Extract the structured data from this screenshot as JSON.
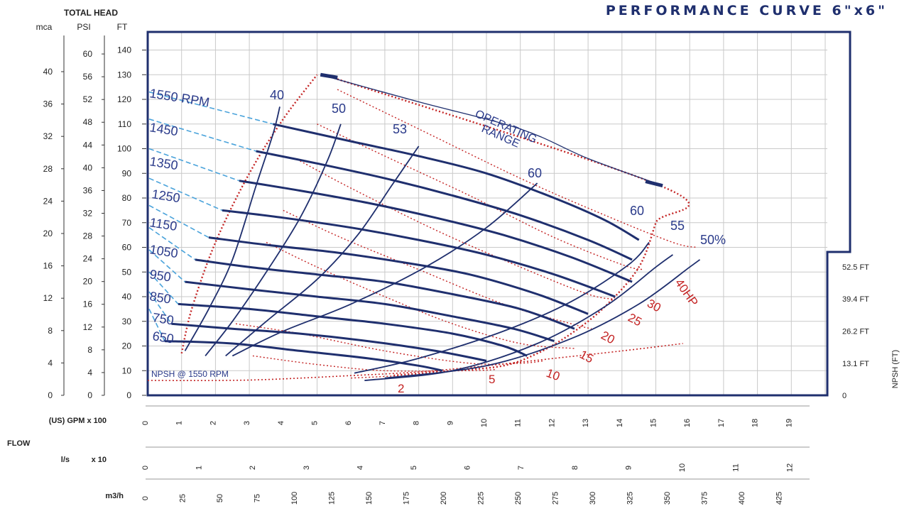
{
  "chart_data": {
    "type": "line",
    "title": "PERFORMANCE CURVE 6\"x6\"",
    "head_axes": {
      "title": "TOTAL HEAD",
      "mca": {
        "label": "mca",
        "ticks": [
          0,
          4,
          8,
          12,
          16,
          20,
          24,
          28,
          32,
          36,
          40
        ]
      },
      "psi": {
        "label": "PSI",
        "ticks": [
          0,
          4,
          8,
          12,
          16,
          20,
          24,
          28,
          32,
          36,
          40,
          44,
          48,
          52,
          56,
          60
        ]
      },
      "ft": {
        "label": "FT",
        "ticks": [
          0,
          10,
          20,
          30,
          40,
          50,
          60,
          70,
          80,
          90,
          100,
          110,
          120,
          130,
          140
        ]
      }
    },
    "npsh_axis": {
      "label": "NPSH (FT)",
      "ticks": [
        {
          "label": "0",
          "value": 0
        },
        {
          "label": "13.1 FT",
          "value": 13.1
        },
        {
          "label": "26.2 FT",
          "value": 26.2
        },
        {
          "label": "39.4 FT",
          "value": 39.4
        },
        {
          "label": "52.5 FT",
          "value": 52.5
        }
      ]
    },
    "flow_axes": {
      "flow_label": "FLOW",
      "gpm": {
        "label": "(US) GPM x 100",
        "ticks": [
          "0",
          "1",
          "2",
          "3",
          "4",
          "5",
          "6",
          "7",
          "8",
          "9",
          "10",
          "11",
          "12",
          "13",
          "14",
          "15",
          "16",
          "17",
          "18",
          "19"
        ]
      },
      "ls": {
        "label": "l/s",
        "multiplier": "x 10",
        "ticks": [
          "0",
          "1",
          "2",
          "3",
          "4",
          "5",
          "6",
          "7",
          "8",
          "9",
          "10",
          "11",
          "12"
        ]
      },
      "m3h": {
        "label": "m3/h",
        "ticks": [
          "0",
          "25",
          "50",
          "75",
          "100",
          "125",
          "150",
          "175",
          "200",
          "225",
          "250",
          "275",
          "300",
          "325",
          "350",
          "375",
          "400",
          "425"
        ]
      }
    },
    "xlim": [
      0,
      20
    ],
    "ylim": [
      0,
      145
    ],
    "speed_curves": [
      {
        "rpm": "1550 RPM",
        "points": [
          [
            3.7,
            110
          ],
          [
            6,
            103
          ],
          [
            8,
            97
          ],
          [
            10,
            90
          ],
          [
            12,
            80
          ],
          [
            13.5,
            71
          ],
          [
            14.5,
            63
          ]
        ]
      },
      {
        "rpm": "1450",
        "points": [
          [
            3.2,
            99
          ],
          [
            5,
            94
          ],
          [
            7,
            88
          ],
          [
            9,
            81
          ],
          [
            11,
            73
          ],
          [
            13,
            63
          ],
          [
            14.3,
            55
          ]
        ]
      },
      {
        "rpm": "1350",
        "points": [
          [
            2.7,
            87
          ],
          [
            4.5,
            83
          ],
          [
            6.5,
            78
          ],
          [
            8.5,
            72
          ],
          [
            10.5,
            65
          ],
          [
            12.5,
            56
          ],
          [
            14.3,
            46
          ]
        ]
      },
      {
        "rpm": "1250",
        "points": [
          [
            2.2,
            75
          ],
          [
            4,
            72
          ],
          [
            6,
            68
          ],
          [
            8,
            63
          ],
          [
            10,
            57
          ],
          [
            12,
            49
          ],
          [
            13.8,
            40
          ]
        ]
      },
      {
        "rpm": "1150",
        "points": [
          [
            1.8,
            64
          ],
          [
            3.5,
            61
          ],
          [
            5.5,
            58
          ],
          [
            7.5,
            54
          ],
          [
            9.5,
            49
          ],
          [
            11.5,
            41
          ],
          [
            13,
            33
          ]
        ]
      },
      {
        "rpm": "1050",
        "points": [
          [
            1.4,
            55
          ],
          [
            3,
            52
          ],
          [
            5,
            49
          ],
          [
            7,
            46
          ],
          [
            9,
            41
          ],
          [
            11,
            35
          ],
          [
            12.6,
            27
          ]
        ]
      },
      {
        "rpm": "950",
        "points": [
          [
            1.1,
            46
          ],
          [
            3,
            43
          ],
          [
            5,
            40
          ],
          [
            7,
            37
          ],
          [
            9,
            32
          ],
          [
            10.8,
            27
          ],
          [
            12,
            22
          ]
        ]
      },
      {
        "rpm": "850",
        "points": [
          [
            0.9,
            37
          ],
          [
            3,
            35
          ],
          [
            5,
            32
          ],
          [
            7,
            29
          ],
          [
            9,
            25
          ],
          [
            10.5,
            20
          ],
          [
            11.2,
            16
          ]
        ]
      },
      {
        "rpm": "750",
        "points": [
          [
            0.7,
            29
          ],
          [
            2.5,
            27
          ],
          [
            4.5,
            25
          ],
          [
            6.5,
            22
          ],
          [
            8.5,
            18
          ],
          [
            10,
            14
          ]
        ]
      },
      {
        "rpm": "650",
        "points": [
          [
            0.5,
            22
          ],
          [
            2.5,
            21
          ],
          [
            4.5,
            18
          ],
          [
            6.5,
            15
          ],
          [
            8,
            12
          ],
          [
            8.7,
            10
          ]
        ]
      }
    ],
    "efficiency_curves": [
      {
        "label": "40",
        "points": [
          [
            1.1,
            18
          ],
          [
            1.8,
            35
          ],
          [
            2.5,
            55
          ],
          [
            3.2,
            85
          ],
          [
            3.7,
            106
          ],
          [
            3.9,
            117
          ]
        ]
      },
      {
        "label": "50",
        "points": [
          [
            1.7,
            16
          ],
          [
            2.5,
            30
          ],
          [
            3.5,
            50
          ],
          [
            4.5,
            72
          ],
          [
            5.3,
            95
          ],
          [
            5.7,
            110
          ]
        ]
      },
      {
        "label": "53",
        "points": [
          [
            2.3,
            16
          ],
          [
            3.5,
            30
          ],
          [
            5,
            47
          ],
          [
            6.2,
            65
          ],
          [
            7.2,
            85
          ],
          [
            8,
            101
          ]
        ]
      },
      {
        "label": "60",
        "points": [
          [
            2.5,
            16
          ],
          [
            4,
            26
          ],
          [
            6,
            37
          ],
          [
            8.2,
            52
          ],
          [
            10,
            68
          ],
          [
            11.5,
            86
          ]
        ]
      },
      {
        "label": "60",
        "points": [
          [
            6.1,
            9
          ],
          [
            8,
            15
          ],
          [
            10.5,
            26
          ],
          [
            12.5,
            38
          ],
          [
            14.2,
            53
          ],
          [
            14.8,
            62
          ]
        ]
      },
      {
        "label": "55",
        "points": [
          [
            6.4,
            6
          ],
          [
            9,
            10
          ],
          [
            11.5,
            21
          ],
          [
            13.5,
            36
          ],
          [
            15,
            52
          ],
          [
            15.5,
            57
          ]
        ]
      },
      {
        "label": "50%",
        "points": [
          [
            7,
            7
          ],
          [
            10,
            12
          ],
          [
            12.5,
            23
          ],
          [
            14.5,
            37
          ],
          [
            16,
            52
          ],
          [
            16.3,
            55
          ]
        ]
      }
    ],
    "power_curves": [
      {
        "label": "2",
        "points": [
          [
            6,
            7
          ],
          [
            6.8,
            7.5
          ],
          [
            7.4,
            8
          ]
        ]
      },
      {
        "label": "5",
        "points": [
          [
            3.1,
            16
          ],
          [
            5,
            12.5
          ],
          [
            7,
            10
          ],
          [
            9.5,
            10
          ],
          [
            10.3,
            10.5
          ]
        ]
      },
      {
        "label": "10",
        "points": [
          [
            2.6,
            29
          ],
          [
            4.5,
            25
          ],
          [
            7,
            18
          ],
          [
            9.5,
            13
          ],
          [
            11,
            13
          ],
          [
            11.7,
            14
          ]
        ]
      },
      {
        "label": "15",
        "points": [
          [
            3.5,
            62
          ],
          [
            5,
            52
          ],
          [
            7,
            40
          ],
          [
            9,
            29
          ],
          [
            11,
            21
          ],
          [
            12.6,
            19
          ]
        ]
      },
      {
        "label": "20",
        "points": [
          [
            4,
            75
          ],
          [
            5.7,
            64
          ],
          [
            8,
            51
          ],
          [
            10.5,
            37
          ],
          [
            12.5,
            29
          ],
          [
            13.1,
            27
          ]
        ]
      },
      {
        "label": "25",
        "points": [
          [
            4.5,
            95
          ],
          [
            6,
            84
          ],
          [
            8.5,
            67
          ],
          [
            11,
            52
          ],
          [
            13,
            41
          ],
          [
            13.8,
            39
          ]
        ]
      },
      {
        "label": "30",
        "points": [
          [
            5,
            110
          ],
          [
            7,
            97
          ],
          [
            9.5,
            81
          ],
          [
            12,
            64
          ],
          [
            14,
            53
          ],
          [
            14.6,
            51
          ]
        ]
      },
      {
        "label": "40HP",
        "points": [
          [
            5.6,
            124
          ],
          [
            8,
            108
          ],
          [
            11,
            88
          ],
          [
            13.5,
            73
          ],
          [
            15.5,
            62
          ],
          [
            16.2,
            60
          ]
        ]
      }
    ],
    "power_labels": [
      "2",
      "5",
      "10",
      "15",
      "20",
      "25",
      "30",
      "40HP"
    ],
    "npsh_curve": {
      "label": "NPSH @ 1550 RPM",
      "points": [
        [
          0,
          6
        ],
        [
          3,
          6.2
        ],
        [
          6,
          8
        ],
        [
          8,
          9.5
        ],
        [
          10,
          12
        ],
        [
          12,
          15
        ],
        [
          14,
          18
        ],
        [
          15.8,
          21
        ]
      ]
    },
    "operating_range_label": [
      "OPERATING",
      "RANGE"
    ],
    "operating_range_arc": [
      [
        5.1,
        130
      ],
      [
        8,
        119
      ],
      [
        11,
        108
      ],
      [
        13,
        96
      ],
      [
        15.2,
        85
      ]
    ],
    "envelope_left": [
      [
        1,
        17
      ],
      [
        1.3,
        35
      ],
      [
        2,
        62
      ],
      [
        3,
        90
      ],
      [
        4,
        112
      ],
      [
        5,
        130
      ]
    ],
    "envelope_right": [
      [
        5.2,
        130
      ],
      [
        15.3,
        84
      ],
      [
        15,
        70
      ],
      [
        14.5,
        52
      ],
      [
        13.5,
        36
      ],
      [
        12.5,
        25
      ],
      [
        11.5,
        17
      ],
      [
        10.5,
        12
      ],
      [
        9,
        10
      ],
      [
        7.2,
        8
      ]
    ]
  },
  "colors": {
    "navy": "#1f2f6e",
    "red": "#c42424",
    "cyan": "#4aa3db",
    "grid": "#c9c9c9"
  }
}
